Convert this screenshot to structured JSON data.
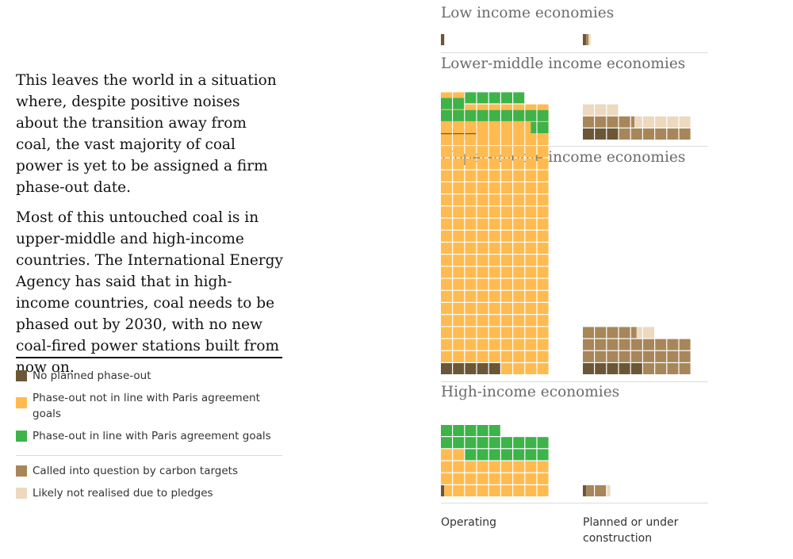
{
  "prose": {
    "p1": "This leaves the world in a situation where, despite positive noises about the transition away from coal, the vast majority of coal power is yet to be assigned a firm phase-out date.",
    "p2": "Most of this untouched coal is in upper-middle and high-income countries. The International Energy Agency has said that in high-income countries, coal needs to be phased out by 2030, with no new coal-fired power stations built from now on."
  },
  "legend": {
    "status": [
      {
        "label": "No planned phase-out",
        "color": "#6b5637"
      },
      {
        "label": "Phase-out not in line with Paris agreement goals",
        "color": "#ffbb50"
      },
      {
        "label": "Phase-out in line with Paris agreement goals",
        "color": "#3db34a"
      }
    ],
    "pipeline": [
      {
        "label": "Called into question by carbon targets",
        "color": "#a7865a"
      },
      {
        "label": "Likely not realised due to pledges",
        "color": "#ecd9be"
      }
    ]
  },
  "chart_data": {
    "type": "waffle",
    "columns": [
      "Operating",
      "Planned or under construction"
    ],
    "categories": [
      "Low income economies",
      "Lower-middle income economies",
      "Upper-middle income economies",
      "High-income economies"
    ],
    "series": [
      {
        "name": "No planned phase-out",
        "color": "#6b5637",
        "values": [
          0.3,
          3,
          5,
          0.3
        ]
      },
      {
        "name": "Phase-out not in line with Paris agreement goals",
        "color": "#ffbb50",
        "values": [
          0,
          26,
          182.5,
          28.7
        ]
      },
      {
        "name": "Phase-out in line with Paris agreement goals",
        "color": "#3db34a",
        "values": [
          0,
          5,
          12.5,
          21
        ]
      },
      {
        "name": "Called into question by carbon targets",
        "color": "#a7865a",
        "values": [
          0.2,
          10.3,
          26.5,
          1.7
        ]
      },
      {
        "name": "Likely not realised due to pledges",
        "color": "#ecd9be",
        "values": [
          0.2,
          7.7,
          1.5,
          0.3
        ]
      }
    ]
  },
  "footer": {
    "operating": "Operating",
    "planned": "Planned or under construction"
  }
}
